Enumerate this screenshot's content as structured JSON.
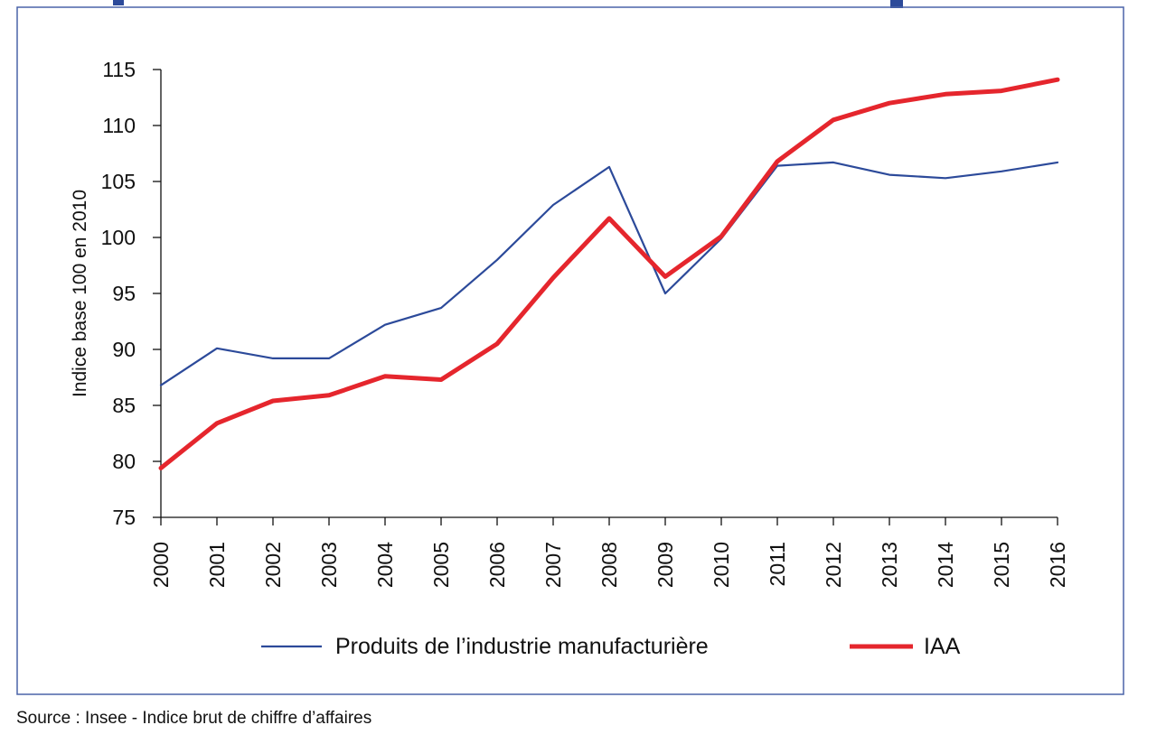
{
  "source": "Source : Insee - Indice brut de chiffre d’affaires",
  "chart_data": {
    "type": "line",
    "title": "",
    "xlabel": "",
    "ylabel": "Indice base 100 en 2010",
    "ylim": [
      75,
      115
    ],
    "yticks": [
      "75",
      "80",
      "85",
      "90",
      "95",
      "100",
      "105",
      "110",
      "115"
    ],
    "x": [
      "2000",
      "2001",
      "2002",
      "2003",
      "2004",
      "2005",
      "2006",
      "2007",
      "2008",
      "2009",
      "2010",
      "2011",
      "2012",
      "2013",
      "2014",
      "2015",
      "2016"
    ],
    "grid": false,
    "legend_position": "bottom",
    "series": [
      {
        "name": "Produits de l’industrie manufacturière",
        "color": "#2c4a9a",
        "values": [
          86.8,
          90.1,
          89.2,
          89.2,
          92.2,
          93.7,
          98.0,
          102.9,
          106.3,
          95.0,
          99.9,
          106.4,
          106.7,
          105.6,
          105.3,
          105.9,
          106.7
        ]
      },
      {
        "name": "IAA",
        "color": "#e5262d",
        "values": [
          79.4,
          83.4,
          85.4,
          85.9,
          87.6,
          87.3,
          90.5,
          96.4,
          101.7,
          96.5,
          100.1,
          106.8,
          110.5,
          112.0,
          112.8,
          113.1,
          114.1
        ]
      }
    ]
  }
}
